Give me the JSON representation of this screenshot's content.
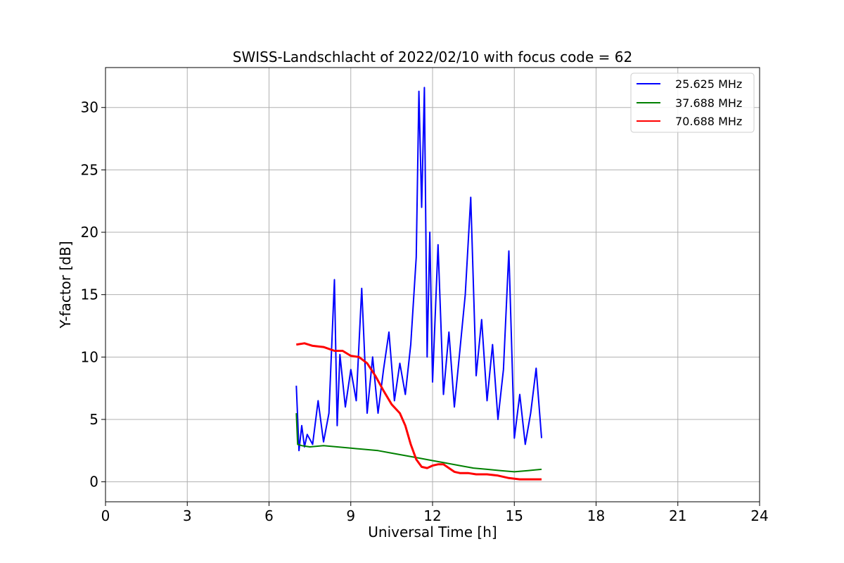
{
  "chart_data": {
    "type": "line",
    "title": "SWISS-Landschlacht of 2022/02/10 with focus code = 62",
    "xlabel": "Universal Time [h]",
    "ylabel": "Y-factor [dB]",
    "xlim": [
      0,
      24
    ],
    "ylim": [
      -1.6,
      33.2
    ],
    "xticks": [
      0,
      3,
      6,
      9,
      12,
      15,
      18,
      21,
      24
    ],
    "yticks": [
      0,
      5,
      10,
      15,
      20,
      25,
      30
    ],
    "grid": true,
    "legend_position": "top-right",
    "series": [
      {
        "name": "25.625 MHz",
        "color": "#0000ff",
        "x": [
          7.0,
          7.1,
          7.2,
          7.3,
          7.4,
          7.6,
          7.8,
          8.0,
          8.2,
          8.4,
          8.5,
          8.6,
          8.8,
          9.0,
          9.2,
          9.4,
          9.6,
          9.8,
          10.0,
          10.2,
          10.4,
          10.6,
          10.8,
          11.0,
          11.2,
          11.4,
          11.5,
          11.6,
          11.7,
          11.8,
          11.9,
          12.0,
          12.2,
          12.4,
          12.6,
          12.8,
          13.0,
          13.2,
          13.4,
          13.6,
          13.8,
          14.0,
          14.2,
          14.4,
          14.6,
          14.8,
          15.0,
          15.2,
          15.4,
          15.6,
          15.8,
          16.0
        ],
        "y": [
          7.7,
          2.5,
          4.5,
          2.8,
          3.8,
          3.0,
          6.5,
          3.2,
          5.5,
          16.2,
          4.5,
          10.2,
          6.0,
          9.0,
          6.5,
          15.5,
          5.5,
          10.0,
          5.5,
          9.0,
          12.0,
          6.5,
          9.5,
          7.0,
          11.0,
          18.0,
          31.3,
          22.0,
          31.6,
          10.0,
          20.0,
          8.0,
          19.0,
          7.0,
          12.0,
          6.0,
          10.5,
          15.0,
          22.8,
          8.5,
          13.0,
          6.5,
          11.0,
          5.0,
          9.0,
          18.5,
          3.5,
          7.0,
          3.0,
          5.5,
          9.1,
          3.5
        ]
      },
      {
        "name": "37.688 MHz",
        "color": "#008000",
        "x": [
          7.0,
          7.05,
          7.2,
          7.5,
          8.0,
          8.5,
          9.0,
          9.5,
          10.0,
          10.5,
          11.0,
          11.5,
          12.0,
          12.5,
          13.0,
          13.5,
          14.0,
          14.5,
          15.0,
          15.5,
          16.0
        ],
        "y": [
          5.5,
          3.0,
          2.9,
          2.8,
          2.9,
          2.8,
          2.7,
          2.6,
          2.5,
          2.3,
          2.1,
          1.9,
          1.7,
          1.5,
          1.3,
          1.1,
          1.0,
          0.9,
          0.8,
          0.9,
          1.0
        ]
      },
      {
        "name": "70.688 MHz",
        "color": "#ff0000",
        "x": [
          7.0,
          7.3,
          7.6,
          8.0,
          8.4,
          8.7,
          9.0,
          9.3,
          9.6,
          9.9,
          10.2,
          10.5,
          10.8,
          11.0,
          11.2,
          11.4,
          11.6,
          11.8,
          12.0,
          12.2,
          12.4,
          12.6,
          12.8,
          13.0,
          13.3,
          13.6,
          14.0,
          14.4,
          14.8,
          15.2,
          15.6,
          16.0
        ],
        "y": [
          11.0,
          11.1,
          10.9,
          10.8,
          10.5,
          10.5,
          10.1,
          10.0,
          9.5,
          8.5,
          7.3,
          6.2,
          5.5,
          4.5,
          3.0,
          1.8,
          1.2,
          1.1,
          1.3,
          1.4,
          1.4,
          1.1,
          0.8,
          0.7,
          0.7,
          0.6,
          0.6,
          0.5,
          0.3,
          0.2,
          0.2,
          0.2
        ]
      }
    ]
  }
}
